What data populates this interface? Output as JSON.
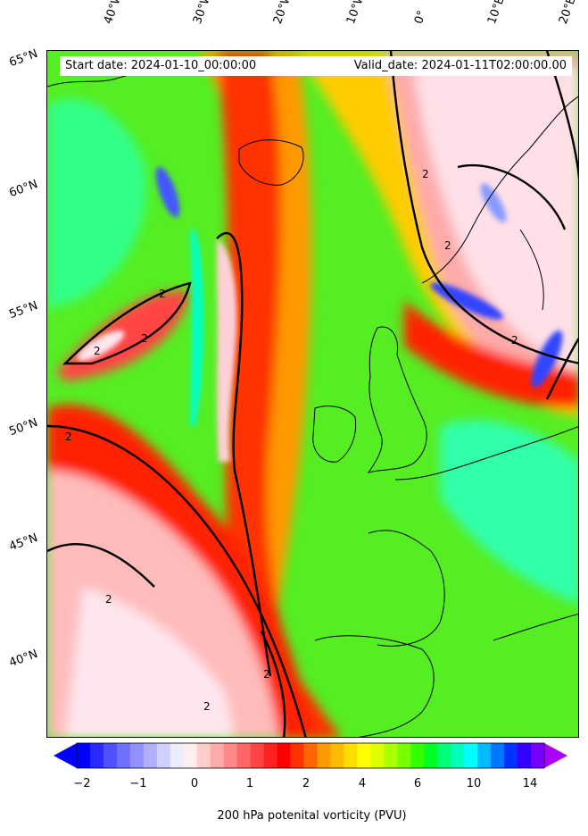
{
  "header": {
    "start_date": "Start date: 2024-01-10_00:00:00",
    "valid_date": "Valid_date: 2024-01-11T02:00:00.00"
  },
  "lon_labels": [
    "40°W",
    "30°W",
    "20°W",
    "10°W",
    "0°",
    "10°E",
    "20°E"
  ],
  "lat_labels": [
    "65°N",
    "60°N",
    "55°N",
    "50°N",
    "45°N",
    "40°N"
  ],
  "contour_label": "2",
  "colorbar": {
    "label": "200 hPa potenital vorticity (PVU)",
    "ticks": [
      "−2",
      "−1",
      "0",
      "1",
      "2",
      "4",
      "6",
      "10",
      "14"
    ],
    "colors": [
      "#0000ff",
      "#2a2aff",
      "#5050ff",
      "#7070ff",
      "#9090ff",
      "#b0b0ff",
      "#d0d0ff",
      "#ececff",
      "#ffeeee",
      "#ffcccc",
      "#ffaaaa",
      "#ff8888",
      "#ff6666",
      "#ff4444",
      "#ff2222",
      "#ff0000",
      "#ff3300",
      "#ff6600",
      "#ff9900",
      "#ffbb00",
      "#ffdd00",
      "#ffff00",
      "#ddff00",
      "#aaff00",
      "#77ff00",
      "#33ff00",
      "#00ff22",
      "#00ff77",
      "#00ffbb",
      "#00ffff",
      "#00bbff",
      "#0077ff",
      "#0033ff",
      "#3300ff",
      "#7700ff"
    ],
    "extend_low_color": "#0000ff",
    "extend_high_color": "#aa00ff"
  },
  "colors": {
    "background_green": "#55ee22",
    "ridge_red": "#ff2200",
    "trough_pink": "#ffe0e8",
    "land_outline": "#000000"
  }
}
